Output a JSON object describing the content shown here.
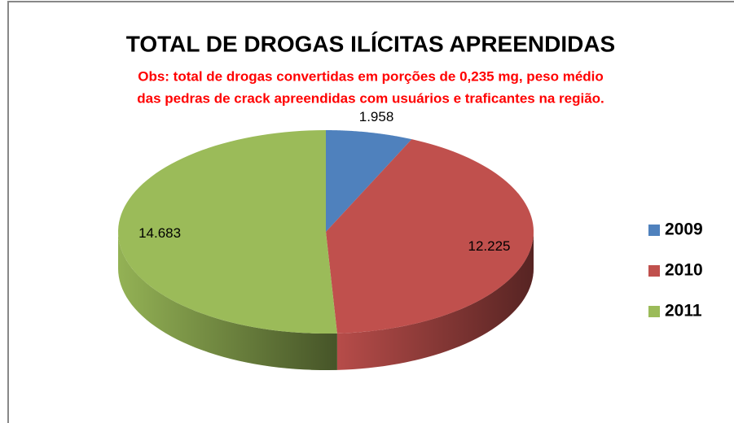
{
  "chart_data": {
    "type": "pie",
    "title": "TOTAL DE DROGAS ILÍCITAS APREENDIDAS",
    "subtitle": [
      "Obs: total de drogas convertidas em porções de 0,235 mg, peso médio",
      "das pedras de crack apreendidas com usuários e traficantes na região."
    ],
    "categories": [
      "2009",
      "2010",
      "2011"
    ],
    "values": [
      1958,
      12225,
      14683
    ],
    "value_labels": [
      "1.958",
      "12.225",
      "14.683"
    ],
    "colors": [
      "#4f81bd",
      "#c0504d",
      "#9bbb59"
    ],
    "legend": "right"
  }
}
